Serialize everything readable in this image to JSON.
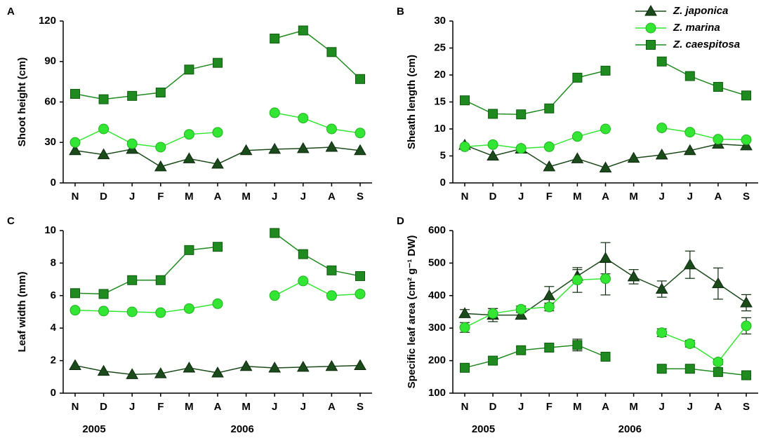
{
  "chart_data": [
    {
      "type": "line",
      "panel_label": "A",
      "ylabel": "Shoot height (cm)",
      "categories": [
        "N",
        "D",
        "J",
        "F",
        "M",
        "A",
        "M",
        "J",
        "J",
        "A",
        "S"
      ],
      "ylim": [
        0,
        120
      ],
      "yticks": [
        0,
        30,
        60,
        90,
        120
      ],
      "series": [
        {
          "color": "#1b4a1b",
          "marker": "triangle",
          "values": [
            24,
            21,
            25,
            12,
            18,
            14,
            24,
            25,
            25.5,
            26.5,
            24
          ]
        },
        {
          "color": "#33e633",
          "marker": "circle",
          "values": [
            30,
            40,
            29,
            26.5,
            36,
            37.5,
            null,
            52,
            48,
            40,
            37
          ]
        },
        {
          "color": "#1f8a1f",
          "marker": "square",
          "values": [
            66,
            62,
            64.5,
            67,
            84,
            89,
            null,
            107,
            113,
            97,
            77
          ]
        }
      ]
    },
    {
      "type": "line",
      "panel_label": "B",
      "ylabel": "Sheath length (cm)",
      "categories": [
        "N",
        "D",
        "J",
        "F",
        "M",
        "A",
        "M",
        "J",
        "J",
        "A",
        "S"
      ],
      "ylim": [
        0,
        30
      ],
      "yticks": [
        0,
        5,
        10,
        15,
        20,
        25,
        30
      ],
      "legend": "upper right",
      "series": [
        {
          "name": "Z. japonica",
          "color": "#1b4a1b",
          "marker": "triangle",
          "values": [
            7,
            5,
            6.3,
            3,
            4.5,
            2.8,
            4.6,
            5.2,
            6,
            7.2,
            6.9
          ]
        },
        {
          "name": "Z. marina",
          "color": "#33e633",
          "marker": "circle",
          "values": [
            6.7,
            7.1,
            6.4,
            6.7,
            8.6,
            10,
            null,
            10.2,
            9.4,
            8.1,
            8
          ]
        },
        {
          "name": "Z. caespitosa",
          "color": "#1f8a1f",
          "marker": "square",
          "values": [
            15.3,
            12.8,
            12.7,
            13.8,
            19.5,
            20.8,
            null,
            22.5,
            19.8,
            17.8,
            16.2
          ]
        }
      ]
    },
    {
      "type": "line",
      "panel_label": "C",
      "ylabel": "Leaf width (mm)",
      "categories": [
        "N",
        "D",
        "J",
        "F",
        "M",
        "A",
        "M",
        "J",
        "J",
        "A",
        "S"
      ],
      "ylim": [
        0,
        10
      ],
      "yticks": [
        0,
        2,
        4,
        6,
        8,
        10
      ],
      "annotations": [
        "2005",
        "2006"
      ],
      "series": [
        {
          "color": "#1b4a1b",
          "marker": "triangle",
          "values": [
            1.7,
            1.35,
            1.15,
            1.2,
            1.55,
            1.25,
            1.65,
            1.55,
            1.6,
            1.65,
            1.7
          ]
        },
        {
          "color": "#33e633",
          "marker": "circle",
          "values": [
            5.1,
            5.05,
            5.0,
            4.95,
            5.2,
            5.5,
            null,
            6.0,
            6.9,
            6.0,
            6.1
          ]
        },
        {
          "color": "#1f8a1f",
          "marker": "square",
          "values": [
            6.15,
            6.1,
            6.95,
            6.95,
            8.8,
            9.0,
            null,
            9.85,
            8.55,
            7.55,
            7.2
          ]
        }
      ]
    },
    {
      "type": "line",
      "panel_label": "D",
      "ylabel": "Specific leaf area (cm² g⁻¹ DW)",
      "categories": [
        "N",
        "D",
        "J",
        "F",
        "M",
        "A",
        "M",
        "J",
        "J",
        "A",
        "S"
      ],
      "ylim": [
        100,
        600
      ],
      "yticks": [
        100,
        200,
        300,
        400,
        500,
        600
      ],
      "annotations": [
        "2005",
        "2006"
      ],
      "series": [
        {
          "color": "#1b4a1b",
          "marker": "triangle",
          "values": [
            345,
            340,
            340,
            400,
            460,
            515,
            458,
            420,
            495,
            437,
            378
          ],
          "errors": [
            12,
            20,
            10,
            28,
            20,
            48,
            22,
            25,
            42,
            48,
            25
          ]
        },
        {
          "color": "#33e633",
          "marker": "circle",
          "values": [
            302,
            345,
            358,
            365,
            448,
            452,
            null,
            286,
            252,
            196,
            307
          ],
          "errors": [
            15,
            15,
            10,
            12,
            38,
            50,
            null,
            12,
            10,
            8,
            25
          ]
        },
        {
          "color": "#1f8a1f",
          "marker": "square",
          "values": [
            178,
            200,
            232,
            240,
            248,
            212,
            null,
            175,
            175,
            165,
            155
          ],
          "errors": [
            10,
            10,
            10,
            10,
            18,
            10,
            null,
            10,
            10,
            8,
            10
          ]
        }
      ]
    }
  ]
}
